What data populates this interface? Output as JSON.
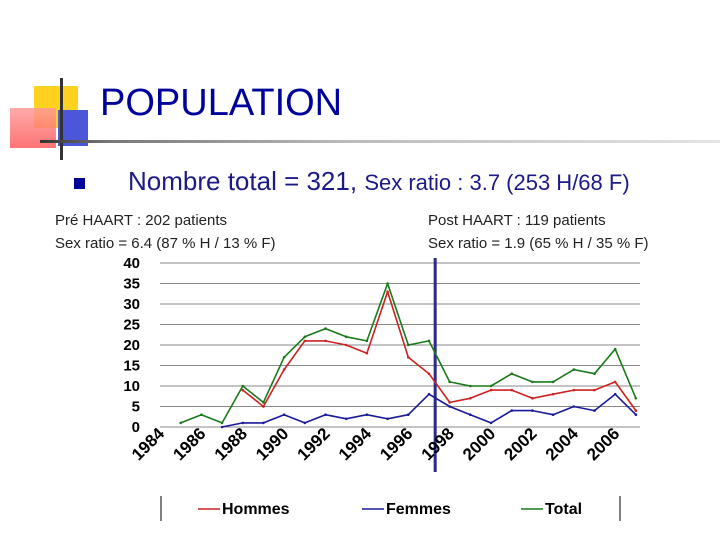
{
  "title": "POPULATION",
  "bullet": {
    "main": "Nombre total = 321,",
    "detail": "Sex ratio : 3.7 (253 H/68 F)"
  },
  "notes": {
    "pre_line1": "Pré HAART : 202 patients",
    "pre_line2": "Sex ratio = 6.4 (87 % H / 13 % F)",
    "post_line1": "Post HAART : 119 patients",
    "post_line2": "Sex ratio = 1.9 (65 % H / 35 % F)"
  },
  "colors": {
    "hommes": "#cc2222",
    "femmes": "#1a1a99",
    "total": "#1a7a1a",
    "divider": "#2a2a88"
  },
  "chart_data": {
    "type": "line",
    "title": "",
    "xlabel": "",
    "ylabel": "",
    "x": [
      1985,
      1986,
      1987,
      1988,
      1989,
      1990,
      1991,
      1992,
      1993,
      1994,
      1995,
      1996,
      1997,
      1998,
      1999,
      2000,
      2001,
      2002,
      2003,
      2004,
      2005,
      2006,
      2007
    ],
    "xlim": [
      1984,
      2007.2
    ],
    "ylim": [
      0,
      40
    ],
    "yticks": [
      0,
      5,
      10,
      15,
      20,
      25,
      30,
      35,
      40
    ],
    "xtick_labels": [
      "1984",
      "1986",
      "1988",
      "1990",
      "1992",
      "1994",
      "1996",
      "1998",
      "2000",
      "2002",
      "2004",
      "2006"
    ],
    "divider_year": 1997.3,
    "grid": true,
    "legend_position": "bottom",
    "series": [
      {
        "name": "Hommes",
        "color": "#cc2222",
        "values": [
          null,
          null,
          null,
          9,
          5,
          14,
          21,
          21,
          20,
          18,
          33,
          17,
          13,
          6,
          7,
          9,
          9,
          7,
          8,
          9,
          9,
          11,
          4
        ]
      },
      {
        "name": "Femmes",
        "color": "#1a1a99",
        "values": [
          null,
          null,
          0,
          1,
          1,
          3,
          1,
          3,
          2,
          3,
          2,
          3,
          8,
          5,
          3,
          1,
          4,
          4,
          3,
          5,
          4,
          8,
          3
        ]
      },
      {
        "name": "Total",
        "color": "#1a7a1a",
        "values": [
          1,
          3,
          1,
          10,
          6,
          17,
          22,
          24,
          22,
          21,
          35,
          20,
          21,
          11,
          10,
          10,
          13,
          11,
          11,
          14,
          13,
          19,
          7
        ]
      }
    ]
  }
}
